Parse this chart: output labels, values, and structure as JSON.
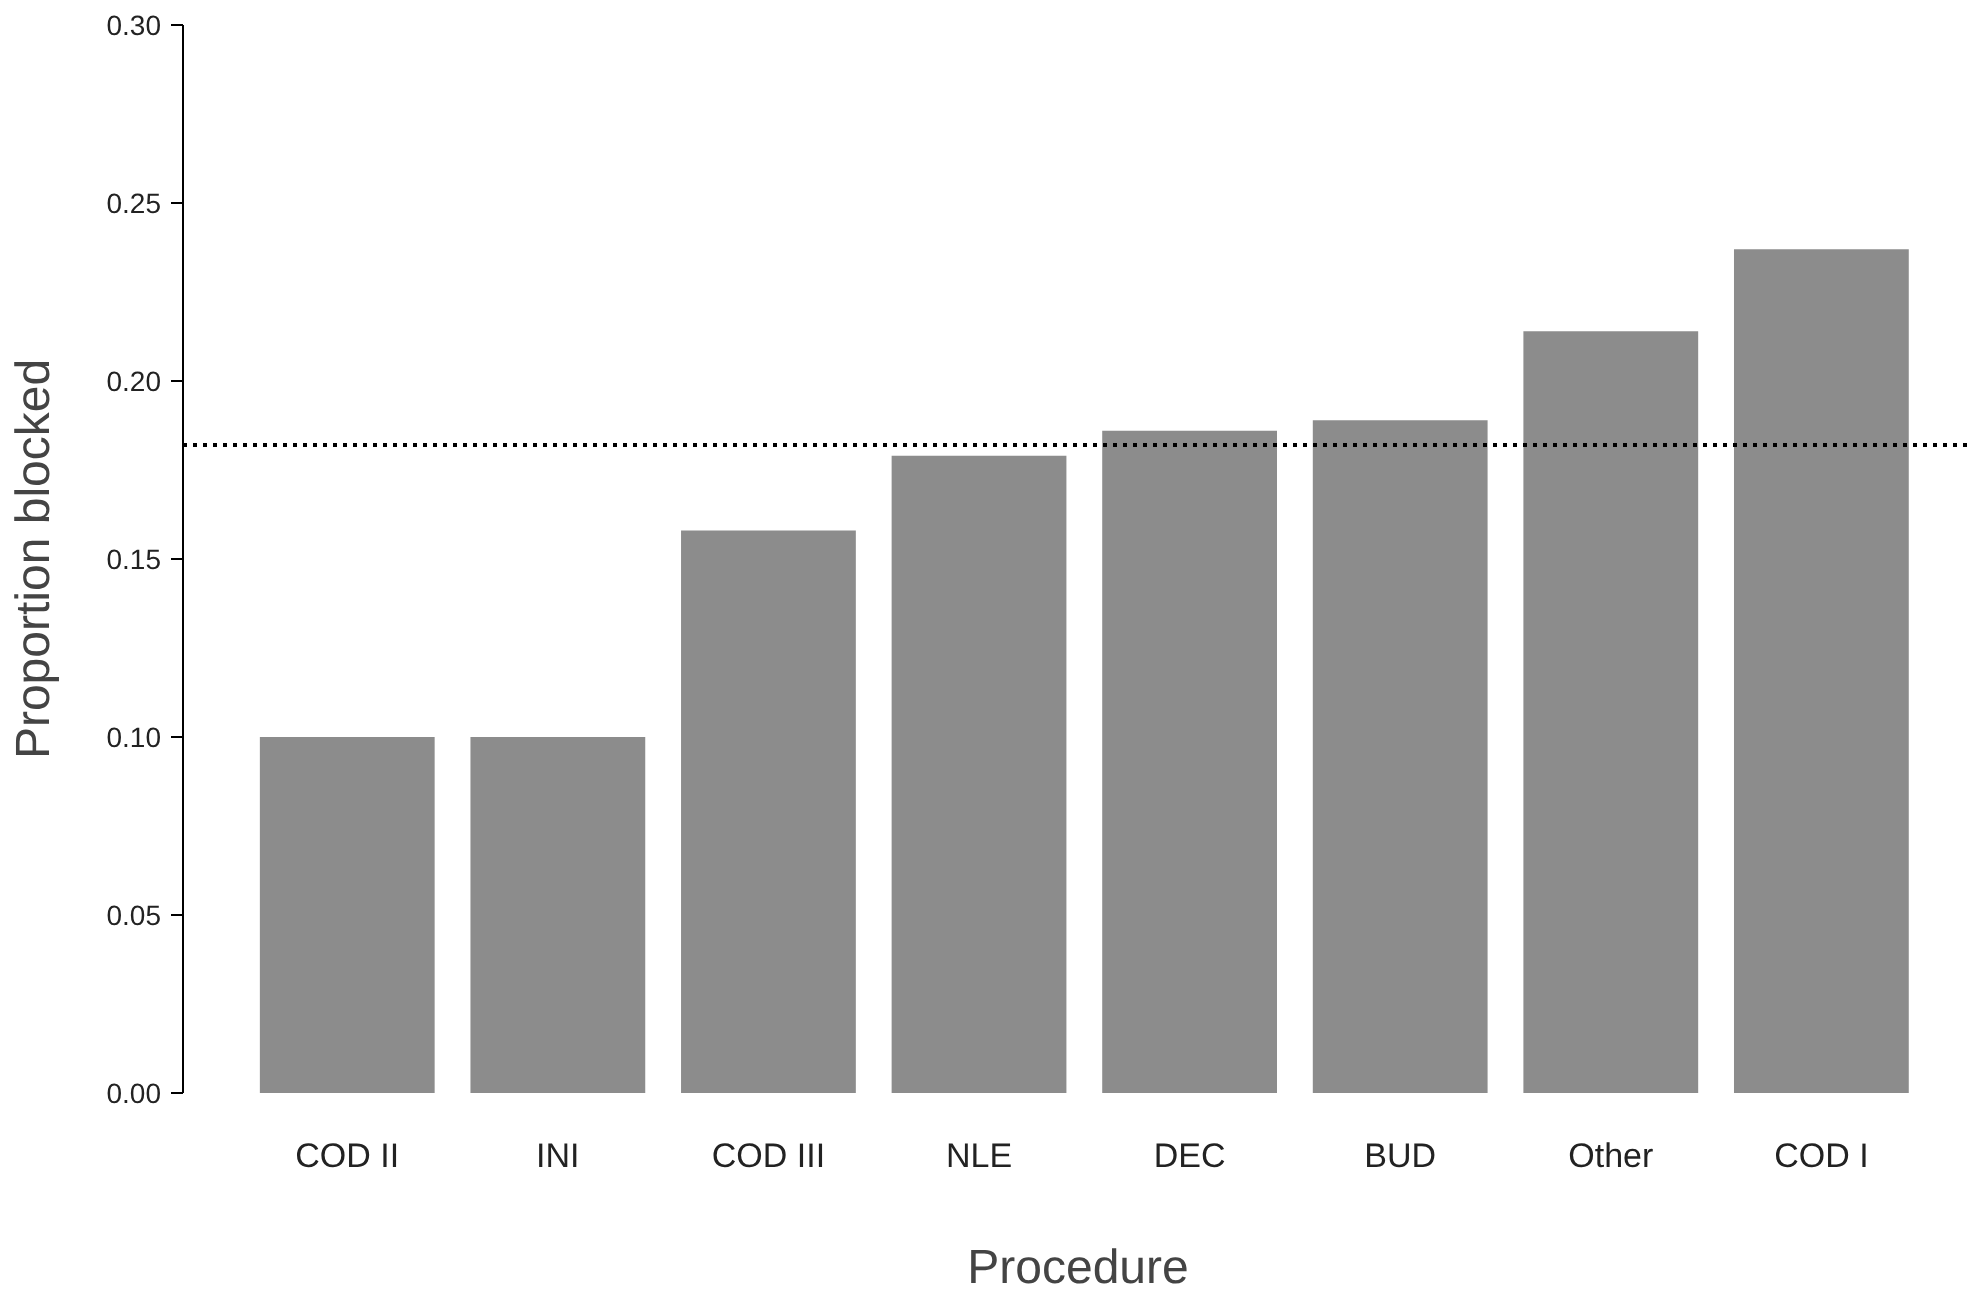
{
  "chart_data": {
    "type": "bar",
    "xlabel": "Procedure",
    "ylabel": "Proportion blocked",
    "categories": [
      "COD II",
      "INI",
      "COD III",
      "NLE",
      "DEC",
      "BUD",
      "Other",
      "COD I"
    ],
    "values": [
      0.1,
      0.1,
      0.158,
      0.179,
      0.186,
      0.189,
      0.214,
      0.237
    ],
    "color": "#8c8c8c",
    "ylim": [
      0,
      0.3
    ],
    "yticks": [
      {
        "value": 0,
        "label": "0.00"
      },
      {
        "value": 0.05,
        "label": "0.05"
      },
      {
        "value": 0.1,
        "label": "0.10"
      },
      {
        "value": 0.15,
        "label": "0.15"
      },
      {
        "value": 0.2,
        "label": "0.20"
      },
      {
        "value": 0.25,
        "label": "0.25"
      },
      {
        "value": 0.3,
        "label": "0.30"
      }
    ],
    "grid": false,
    "ref_lines": [
      {
        "axis": "y",
        "value": 0.182,
        "color": "#000000",
        "line_style": "dotted"
      }
    ]
  }
}
